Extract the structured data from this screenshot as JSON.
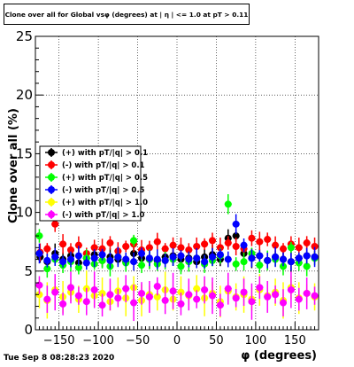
{
  "title": "Clone  over all for Global vsφ (degrees) at | η | <= 1.0 at pT > 0.11",
  "timestamp": "Tue Sep  8 08:28:23 2020",
  "chart_data": {
    "type": "scatter",
    "xlabel": "φ (degrees)",
    "ylabel": "Clone  over all (%)",
    "xlim": [
      -180,
      180
    ],
    "ylim": [
      0,
      25
    ],
    "x_ticks": [
      -150,
      -100,
      -50,
      0,
      50,
      100,
      150
    ],
    "y_ticks": [
      0,
      5,
      10,
      15,
      20,
      25
    ],
    "x_tick_labels": [
      "−150",
      "−100",
      "−50",
      "0",
      "50",
      "100",
      "150"
    ],
    "y_tick_labels": [
      "0",
      "5",
      "10",
      "15",
      "20",
      "25"
    ],
    "grid": true,
    "legend_position": "middle-left",
    "series": [
      {
        "name": "(+) with pT/|q| > 0.1",
        "color": "#000000",
        "x": [
          -174,
          -165,
          -155,
          -145,
          -135,
          -125,
          -115,
          -105,
          -95,
          -85,
          -75,
          -65,
          -55,
          -45,
          -35,
          -25,
          -15,
          -5,
          5,
          15,
          25,
          35,
          45,
          55,
          65,
          75,
          85,
          95,
          105,
          115,
          125,
          135,
          145,
          155,
          165,
          175
        ],
        "y": [
          6.2,
          5.8,
          6.5,
          6.0,
          6.3,
          5.7,
          6.1,
          6.4,
          5.9,
          6.2,
          6.0,
          5.8,
          6.5,
          6.1,
          6.0,
          5.9,
          6.2,
          6.3,
          6.0,
          6.1,
          5.8,
          6.2,
          6.4,
          6.0,
          7.8,
          8.0,
          6.5,
          6.1,
          6.3,
          5.9,
          6.2,
          6.0,
          5.8,
          6.1,
          6.3,
          6.2
        ]
      },
      {
        "name": "(-) with pT/|q| > 0.1",
        "color": "#ff0000",
        "x": [
          -174,
          -165,
          -155,
          -145,
          -135,
          -125,
          -115,
          -105,
          -95,
          -85,
          -75,
          -65,
          -55,
          -45,
          -35,
          -25,
          -15,
          -5,
          5,
          15,
          25,
          35,
          45,
          55,
          65,
          75,
          85,
          95,
          105,
          115,
          125,
          135,
          145,
          155,
          165,
          175
        ],
        "y": [
          6.6,
          6.9,
          9.0,
          7.3,
          6.8,
          7.2,
          6.5,
          7.0,
          6.9,
          7.4,
          6.7,
          7.1,
          7.3,
          6.8,
          7.0,
          7.5,
          6.9,
          7.2,
          7.0,
          6.8,
          7.1,
          7.3,
          7.6,
          7.0,
          7.4,
          7.1,
          6.9,
          7.8,
          7.5,
          7.7,
          7.2,
          6.9,
          7.3,
          7.0,
          7.4,
          7.1
        ]
      },
      {
        "name": "(+) with pT/|q| > 0.5",
        "color": "#00ff00",
        "x": [
          -175,
          -165,
          -155,
          -145,
          -135,
          -125,
          -115,
          -105,
          -95,
          -85,
          -75,
          -65,
          -55,
          -45,
          -35,
          -25,
          -15,
          -5,
          5,
          15,
          25,
          35,
          45,
          55,
          65,
          75,
          85,
          95,
          105,
          115,
          125,
          135,
          145,
          155,
          165,
          175
        ],
        "y": [
          8.0,
          5.2,
          6.0,
          5.5,
          5.8,
          5.3,
          6.1,
          5.6,
          5.9,
          5.4,
          6.2,
          5.7,
          7.6,
          5.5,
          6.0,
          5.6,
          5.9,
          6.0,
          5.4,
          5.8,
          6.1,
          5.6,
          5.9,
          6.3,
          10.7,
          5.6,
          5.8,
          6.5,
          5.5,
          5.9,
          6.0,
          5.4,
          7.0,
          5.7,
          5.4,
          6.1
        ]
      },
      {
        "name": "(-) with pT/|q| > 0.5",
        "color": "#0000ff",
        "x": [
          -175,
          -165,
          -155,
          -145,
          -135,
          -125,
          -115,
          -105,
          -95,
          -85,
          -75,
          -65,
          -55,
          -45,
          -35,
          -25,
          -15,
          -5,
          5,
          15,
          25,
          35,
          45,
          55,
          65,
          75,
          85,
          95,
          105,
          115,
          125,
          135,
          145,
          155,
          165,
          175
        ],
        "y": [
          6.5,
          5.9,
          6.2,
          5.8,
          6.0,
          6.3,
          5.7,
          6.1,
          6.4,
          5.9,
          6.2,
          6.0,
          5.8,
          6.5,
          6.1,
          6.0,
          5.9,
          6.2,
          6.3,
          6.0,
          6.1,
          5.8,
          6.2,
          6.4,
          6.0,
          9.0,
          7.2,
          6.1,
          6.3,
          5.9,
          6.2,
          6.0,
          5.8,
          6.1,
          6.3,
          6.2
        ]
      },
      {
        "name": "(+) with pT/|q| > 1.0",
        "color": "#ffff00",
        "x": [
          -175,
          -165,
          -155,
          -145,
          -135,
          -125,
          -115,
          -105,
          -95,
          -85,
          -75,
          -65,
          -55,
          -45,
          -35,
          -25,
          -15,
          -5,
          5,
          15,
          25,
          35,
          45,
          55,
          65,
          75,
          85,
          95,
          105,
          115,
          125,
          135,
          145,
          155,
          165,
          175
        ],
        "y": [
          3.0,
          2.5,
          3.4,
          2.8,
          3.2,
          2.6,
          3.5,
          2.9,
          3.1,
          2.4,
          3.3,
          2.7,
          3.6,
          2.5,
          3.0,
          2.8,
          3.4,
          2.6,
          3.2,
          2.9,
          3.5,
          2.7,
          3.1,
          2.4,
          3.3,
          2.8,
          3.0,
          2.6,
          3.4,
          2.9,
          3.2,
          2.5,
          3.6,
          2.7,
          3.1,
          2.8
        ]
      },
      {
        "name": "(-) with pT/|q| > 1.0",
        "color": "#ff00ff",
        "x": [
          -175,
          -165,
          -155,
          -145,
          -135,
          -125,
          -115,
          -105,
          -95,
          -85,
          -75,
          -65,
          -55,
          -45,
          -35,
          -25,
          -15,
          -5,
          5,
          15,
          25,
          35,
          45,
          55,
          65,
          75,
          85,
          95,
          105,
          115,
          125,
          135,
          145,
          155,
          165,
          175
        ],
        "y": [
          3.8,
          2.6,
          3.2,
          2.2,
          3.6,
          2.9,
          2.4,
          3.4,
          2.1,
          3.0,
          2.7,
          3.5,
          2.3,
          3.1,
          2.8,
          3.7,
          2.5,
          3.3,
          2.2,
          3.0,
          2.6,
          3.4,
          2.9,
          2.1,
          3.5,
          2.7,
          3.2,
          2.4,
          3.6,
          2.8,
          3.0,
          2.3,
          3.4,
          2.6,
          3.1,
          2.9
        ]
      }
    ]
  }
}
